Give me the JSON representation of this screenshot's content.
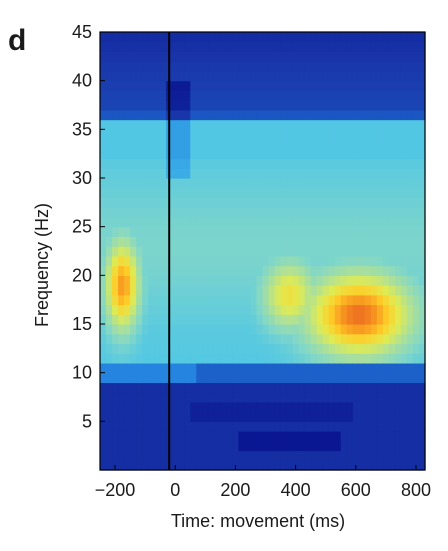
{
  "panel_label": "d",
  "chart_data": {
    "type": "heatmap",
    "title": "",
    "xlabel": "Time: movement (ms)",
    "ylabel": "Frequency (Hz)",
    "xlim": [
      -250,
      830
    ],
    "ylim": [
      0,
      45
    ],
    "x_ticks": [
      -200,
      0,
      200,
      400,
      600,
      800
    ],
    "x_tick_labels": [
      "−200",
      "0",
      "200",
      "400",
      "600",
      "800"
    ],
    "y_ticks": [
      5,
      10,
      15,
      20,
      25,
      30,
      35,
      40,
      45
    ],
    "y_tick_labels": [
      "5",
      "10",
      "15",
      "20",
      "25",
      "30",
      "35",
      "40",
      "45"
    ],
    "marker_line_x": -20,
    "colormap": "jet",
    "color_range": [
      0,
      1
    ],
    "background_color": "#1c3ea0",
    "regions": [
      {
        "description": "low frequency band",
        "freq_range": [
          0,
          9
        ],
        "time_range": [
          -250,
          830
        ],
        "level": 0.12
      },
      {
        "description": "mid band",
        "freq_range": [
          9,
          32
        ],
        "time_range": [
          -250,
          830
        ],
        "level": 0.45
      },
      {
        "description": "high band",
        "freq_range": [
          32,
          45
        ],
        "time_range": [
          -250,
          830
        ],
        "level": 0.2
      },
      {
        "description": "pre-movement beta burst",
        "freq_center": 19,
        "time_center": -180,
        "level": 0.85
      },
      {
        "description": "post-movement beta rebound",
        "freq_center": 16,
        "time_center": 600,
        "level": 0.92
      }
    ]
  }
}
